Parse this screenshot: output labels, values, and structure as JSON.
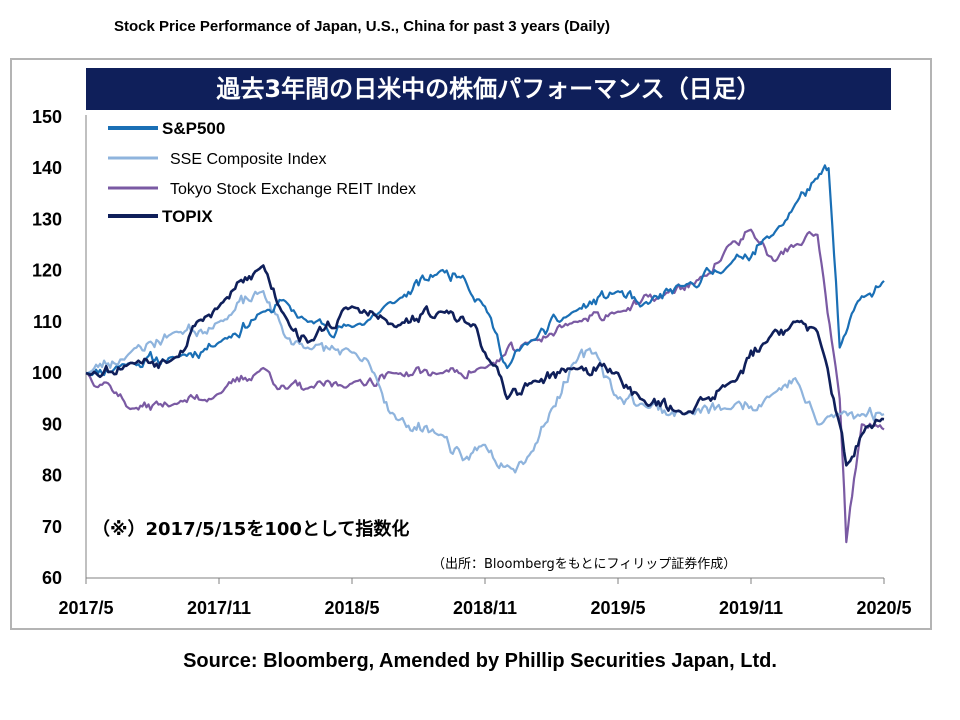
{
  "header": {
    "caption": "Stock Price Performance of Japan, U.S., China for past 3 years (Daily)",
    "title_jp": "過去3年間の日米中の株価パフォーマンス（日足）"
  },
  "footer": {
    "source": "Source: Bloomberg, Amended by Phillip Securities Japan, Ltd."
  },
  "chart_data": {
    "type": "line",
    "title": "過去3年間の日米中の株価パフォーマンス（日足）",
    "xlabel": "",
    "ylabel": "",
    "xlim": [
      "2017/5",
      "2020/5"
    ],
    "ylim": [
      60,
      150
    ],
    "x_ticks": [
      "2017/5",
      "2017/11",
      "2018/5",
      "2018/11",
      "2019/5",
      "2019/11",
      "2020/5"
    ],
    "y_ticks": [
      150,
      140,
      130,
      120,
      110,
      100,
      90,
      80,
      70,
      60
    ],
    "grid": false,
    "legend_position": "top-left",
    "annotations": [
      "（※）2017/5/15を100として指数化",
      "（出所：Bloombergをもとにフィリップ証券作成）"
    ],
    "series": [
      {
        "name": "S&P500",
        "color": "#1a6fb5",
        "x": [
          "2017/5",
          "2017/7",
          "2017/9",
          "2017/11",
          "2018/1",
          "2018/2",
          "2018/3",
          "2018/5",
          "2018/7",
          "2018/9",
          "2018/10",
          "2018/11",
          "2018/12",
          "2019/1",
          "2019/3",
          "2019/5",
          "2019/6",
          "2019/8",
          "2019/10",
          "2019/12",
          "2020/1",
          "2020/2",
          "2020/2.5",
          "2020/3",
          "2020/4",
          "2020/5"
        ],
        "values": [
          100,
          102,
          103,
          106,
          112,
          114,
          110,
          109,
          114,
          120,
          119,
          113,
          101,
          106,
          112,
          116,
          113,
          117,
          121,
          127,
          133,
          138,
          140,
          105,
          115,
          118
        ]
      },
      {
        "name": "SSE Composite Index",
        "color": "#8fb4dd",
        "x": [
          "2017/5",
          "2017/7",
          "2017/9",
          "2017/11",
          "2018/1",
          "2018/2",
          "2018/3",
          "2018/5",
          "2018/6",
          "2018/7",
          "2018/9",
          "2018/10",
          "2018/11",
          "2018/12",
          "2019/1",
          "2019/2",
          "2019/3",
          "2019/4",
          "2019/5",
          "2019/6",
          "2019/8",
          "2019/10",
          "2019/12",
          "2020/1",
          "2020/2",
          "2020/3",
          "2020/4",
          "2020/5"
        ],
        "values": [
          100,
          104,
          108,
          110,
          116,
          107,
          105,
          104,
          100,
          91,
          88,
          83,
          86,
          82,
          84,
          93,
          102,
          104,
          95,
          94,
          92,
          93,
          96,
          99,
          90,
          92,
          92,
          92
        ]
      },
      {
        "name": "Tokyo Stock Exchange REIT Index",
        "color": "#7a5aa3",
        "x": [
          "2017/5",
          "2017/6",
          "2017/7",
          "2017/9",
          "2017/11",
          "2018/1",
          "2018/2",
          "2018/3",
          "2018/5",
          "2018/7",
          "2018/9",
          "2018/11",
          "2019/1",
          "2019/3",
          "2019/5",
          "2019/7",
          "2019/9",
          "2019/10",
          "2019/11",
          "2019/12",
          "2020/1",
          "2020/2",
          "2020/3",
          "2020/3.3",
          "2020/4",
          "2020/5"
        ],
        "values": [
          100,
          98,
          93,
          94,
          96,
          101,
          97,
          97,
          98,
          100,
          100,
          101,
          106,
          110,
          112,
          115,
          119,
          125,
          128,
          122,
          125,
          127,
          95,
          67,
          90,
          89
        ]
      },
      {
        "name": "TOPIX",
        "color": "#0f1f5a",
        "x": [
          "2017/5",
          "2017/7",
          "2017/9",
          "2017/10",
          "2017/11",
          "2018/1",
          "2018/2",
          "2018/3",
          "2018/5",
          "2018/7",
          "2018/9",
          "2018/10",
          "2018/11",
          "2018/12",
          "2019/1",
          "2019/3",
          "2019/5",
          "2019/6",
          "2019/8",
          "2019/10",
          "2019/12",
          "2020/1",
          "2020/2",
          "2020/3",
          "2020/3.3",
          "2020/4",
          "2020/5"
        ],
        "values": [
          100,
          102,
          103,
          110,
          113,
          121,
          111,
          106,
          113,
          109,
          112,
          111,
          104,
          95,
          98,
          101,
          100,
          95,
          92,
          98,
          108,
          110,
          108,
          90,
          82,
          88,
          91
        ]
      }
    ]
  }
}
